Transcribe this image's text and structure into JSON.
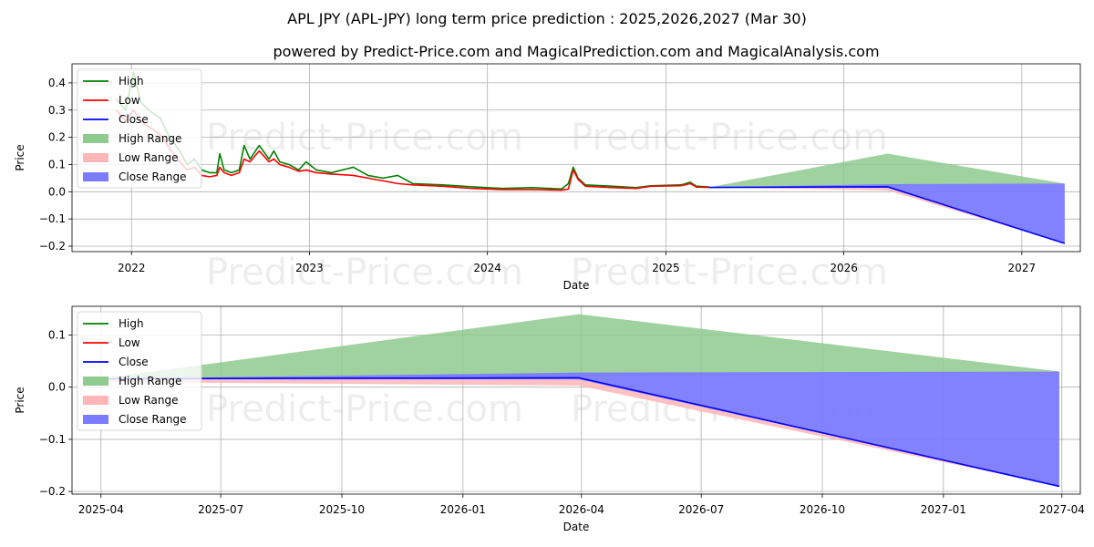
{
  "title": "APL JPY (APL-JPY) long term price prediction : 2025,2026,2027 (Mar 30)",
  "subtitle": "powered by Predict-Price.com and MagicalPrediction.com and MagicalAnalysis.com",
  "watermark": "Predict-Price.com",
  "colors": {
    "high": "#008000",
    "low": "#ff0000",
    "close": "#0000ff",
    "high_range": "#8fca8f",
    "low_range": "#ffb6b6",
    "close_range": "#7b7bff",
    "grid": "#b0b0b0"
  },
  "chart_data": [
    {
      "type": "line",
      "title": "",
      "xlabel": "Date",
      "ylabel": "Price",
      "x_axis": "date",
      "xlim": [
        "2021-09-01",
        "2027-05-01"
      ],
      "ylim": [
        -0.22,
        0.47
      ],
      "xticks": [
        "2022",
        "2023",
        "2024",
        "2025",
        "2026",
        "2027"
      ],
      "xtick_dates": [
        "2022-01-01",
        "2023-01-01",
        "2024-01-01",
        "2025-01-01",
        "2026-01-01",
        "2027-01-01"
      ],
      "yticks": [
        -0.2,
        -0.1,
        0.0,
        0.1,
        0.2,
        0.3,
        0.4
      ],
      "grid": true,
      "legend_position": "top-left",
      "legend": [
        "High",
        "Low",
        "Close",
        "High Range",
        "Low Range",
        "Close Range"
      ],
      "series": [
        {
          "name": "High",
          "color": "#008000",
          "points": [
            [
              "2021-12-01",
              0.34
            ],
            [
              "2021-12-20",
              0.3
            ],
            [
              "2022-01-05",
              0.44
            ],
            [
              "2022-01-20",
              0.33
            ],
            [
              "2022-02-05",
              0.3
            ],
            [
              "2022-03-01",
              0.27
            ],
            [
              "2022-03-20",
              0.2
            ],
            [
              "2022-04-10",
              0.15
            ],
            [
              "2022-04-25",
              0.1
            ],
            [
              "2022-05-10",
              0.12
            ],
            [
              "2022-05-25",
              0.08
            ],
            [
              "2022-06-10",
              0.07
            ],
            [
              "2022-06-25",
              0.07
            ],
            [
              "2022-07-01",
              0.14
            ],
            [
              "2022-07-10",
              0.08
            ],
            [
              "2022-07-25",
              0.07
            ],
            [
              "2022-08-10",
              0.08
            ],
            [
              "2022-08-20",
              0.17
            ],
            [
              "2022-09-01",
              0.12
            ],
            [
              "2022-09-20",
              0.17
            ],
            [
              "2022-10-10",
              0.12
            ],
            [
              "2022-10-20",
              0.15
            ],
            [
              "2022-11-01",
              0.11
            ],
            [
              "2022-11-20",
              0.1
            ],
            [
              "2022-12-10",
              0.08
            ],
            [
              "2022-12-25",
              0.11
            ],
            [
              "2023-01-15",
              0.08
            ],
            [
              "2023-02-15",
              0.07
            ],
            [
              "2023-04-01",
              0.09
            ],
            [
              "2023-05-01",
              0.06
            ],
            [
              "2023-06-01",
              0.05
            ],
            [
              "2023-07-01",
              0.06
            ],
            [
              "2023-08-01",
              0.03
            ],
            [
              "2023-10-01",
              0.025
            ],
            [
              "2023-12-01",
              0.018
            ],
            [
              "2024-02-01",
              0.012
            ],
            [
              "2024-04-01",
              0.015
            ],
            [
              "2024-06-01",
              0.01
            ],
            [
              "2024-06-15",
              0.03
            ],
            [
              "2024-06-25",
              0.09
            ],
            [
              "2024-07-05",
              0.05
            ],
            [
              "2024-07-20",
              0.025
            ],
            [
              "2024-09-15",
              0.02
            ],
            [
              "2024-11-01",
              0.015
            ],
            [
              "2024-12-01",
              0.022
            ],
            [
              "2025-02-01",
              0.025
            ],
            [
              "2025-02-20",
              0.035
            ],
            [
              "2025-03-05",
              0.02
            ],
            [
              "2025-03-30",
              0.018
            ]
          ]
        },
        {
          "name": "Low",
          "color": "#ff0000",
          "points": [
            [
              "2021-12-01",
              0.3
            ],
            [
              "2021-12-20",
              0.26
            ],
            [
              "2022-01-05",
              0.3
            ],
            [
              "2022-01-20",
              0.26
            ],
            [
              "2022-02-05",
              0.24
            ],
            [
              "2022-03-01",
              0.21
            ],
            [
              "2022-03-20",
              0.16
            ],
            [
              "2022-04-10",
              0.11
            ],
            [
              "2022-04-25",
              0.08
            ],
            [
              "2022-05-10",
              0.09
            ],
            [
              "2022-05-25",
              0.06
            ],
            [
              "2022-06-10",
              0.055
            ],
            [
              "2022-06-25",
              0.06
            ],
            [
              "2022-07-01",
              0.09
            ],
            [
              "2022-07-10",
              0.07
            ],
            [
              "2022-07-25",
              0.06
            ],
            [
              "2022-08-10",
              0.07
            ],
            [
              "2022-08-20",
              0.12
            ],
            [
              "2022-09-01",
              0.11
            ],
            [
              "2022-09-20",
              0.15
            ],
            [
              "2022-10-10",
              0.11
            ],
            [
              "2022-10-20",
              0.12
            ],
            [
              "2022-11-01",
              0.1
            ],
            [
              "2022-11-20",
              0.09
            ],
            [
              "2022-12-10",
              0.075
            ],
            [
              "2022-12-25",
              0.08
            ],
            [
              "2023-01-15",
              0.07
            ],
            [
              "2023-02-15",
              0.065
            ],
            [
              "2023-04-01",
              0.06
            ],
            [
              "2023-05-01",
              0.05
            ],
            [
              "2023-06-01",
              0.04
            ],
            [
              "2023-07-01",
              0.03
            ],
            [
              "2023-08-01",
              0.025
            ],
            [
              "2023-10-01",
              0.02
            ],
            [
              "2023-12-01",
              0.012
            ],
            [
              "2024-02-01",
              0.008
            ],
            [
              "2024-04-01",
              0.008
            ],
            [
              "2024-06-01",
              0.006
            ],
            [
              "2024-06-15",
              0.01
            ],
            [
              "2024-06-25",
              0.08
            ],
            [
              "2024-07-05",
              0.045
            ],
            [
              "2024-07-20",
              0.02
            ],
            [
              "2024-09-15",
              0.015
            ],
            [
              "2024-11-01",
              0.012
            ],
            [
              "2024-12-01",
              0.02
            ],
            [
              "2025-02-01",
              0.022
            ],
            [
              "2025-02-20",
              0.03
            ],
            [
              "2025-03-05",
              0.017
            ],
            [
              "2025-03-30",
              0.016
            ]
          ]
        },
        {
          "name": "Close",
          "color": "#0000ff",
          "points": [
            [
              "2025-03-30",
              0.016
            ],
            [
              "2026-04-01",
              0.018
            ],
            [
              "2027-03-30",
              -0.19
            ]
          ]
        }
      ],
      "ranges": [
        {
          "name": "High Range",
          "color": "#8fca8f",
          "upper": [
            [
              "2025-03-30",
              0.016
            ],
            [
              "2026-04-01",
              0.14
            ],
            [
              "2027-03-30",
              0.03
            ]
          ],
          "lower": [
            [
              "2025-03-30",
              0.016
            ],
            [
              "2026-04-01",
              0.02
            ],
            [
              "2027-03-30",
              0.03
            ]
          ]
        },
        {
          "name": "Low Range",
          "color": "#ffb6b6",
          "upper": [
            [
              "2025-03-30",
              0.016
            ],
            [
              "2026-04-01",
              0.018
            ],
            [
              "2027-03-30",
              -0.19
            ]
          ],
          "lower": [
            [
              "2025-03-30",
              0.016
            ],
            [
              "2026-04-01",
              0.005
            ],
            [
              "2027-03-30",
              -0.19
            ]
          ]
        },
        {
          "name": "Close Range",
          "color": "#7b7bff",
          "upper": [
            [
              "2025-03-30",
              0.016
            ],
            [
              "2026-04-01",
              0.028
            ],
            [
              "2027-03-30",
              0.03
            ]
          ],
          "lower": [
            [
              "2025-03-30",
              0.016
            ],
            [
              "2026-04-01",
              0.015
            ],
            [
              "2027-03-30",
              -0.19
            ]
          ]
        }
      ]
    },
    {
      "type": "line",
      "title": "",
      "xlabel": "Date",
      "ylabel": "Price",
      "x_axis": "date",
      "xlim": [
        "2025-03-10",
        "2027-04-15"
      ],
      "ylim": [
        -0.205,
        0.155
      ],
      "xticks": [
        "2025-04",
        "2025-07",
        "2025-10",
        "2026-01",
        "2026-04",
        "2026-07",
        "2026-10",
        "2027-01",
        "2027-04"
      ],
      "xtick_dates": [
        "2025-04-01",
        "2025-07-01",
        "2025-10-01",
        "2026-01-01",
        "2026-04-01",
        "2026-07-01",
        "2026-10-01",
        "2027-01-01",
        "2027-04-01"
      ],
      "yticks": [
        -0.2,
        -0.1,
        0.0,
        0.1
      ],
      "grid": true,
      "legend_position": "top-left",
      "legend": [
        "High",
        "Low",
        "Close",
        "High Range",
        "Low Range",
        "Close Range"
      ],
      "series": [
        {
          "name": "Close",
          "color": "#0000ff",
          "points": [
            [
              "2025-03-30",
              0.016
            ],
            [
              "2026-03-30",
              0.018
            ],
            [
              "2027-03-30",
              -0.19
            ]
          ]
        }
      ],
      "ranges": [
        {
          "name": "High Range",
          "color": "#8fca8f",
          "upper": [
            [
              "2025-03-30",
              0.016
            ],
            [
              "2026-03-30",
              0.14
            ],
            [
              "2027-03-30",
              0.03
            ]
          ],
          "lower": [
            [
              "2025-03-30",
              0.016
            ],
            [
              "2026-03-30",
              0.02
            ],
            [
              "2027-03-30",
              0.03
            ]
          ]
        },
        {
          "name": "Low Range",
          "color": "#ffb6b6",
          "upper": [
            [
              "2025-03-30",
              0.016
            ],
            [
              "2026-03-30",
              0.018
            ],
            [
              "2027-03-30",
              -0.19
            ]
          ],
          "lower": [
            [
              "2025-03-30",
              0.01
            ],
            [
              "2026-03-30",
              0.003
            ],
            [
              "2027-03-30",
              -0.19
            ]
          ]
        },
        {
          "name": "Close Range",
          "color": "#7b7bff",
          "upper": [
            [
              "2025-03-30",
              0.016
            ],
            [
              "2026-03-30",
              0.028
            ],
            [
              "2027-03-30",
              0.03
            ]
          ],
          "lower": [
            [
              "2025-03-30",
              0.016
            ],
            [
              "2026-03-30",
              0.015
            ],
            [
              "2027-03-30",
              -0.19
            ]
          ]
        }
      ]
    }
  ]
}
